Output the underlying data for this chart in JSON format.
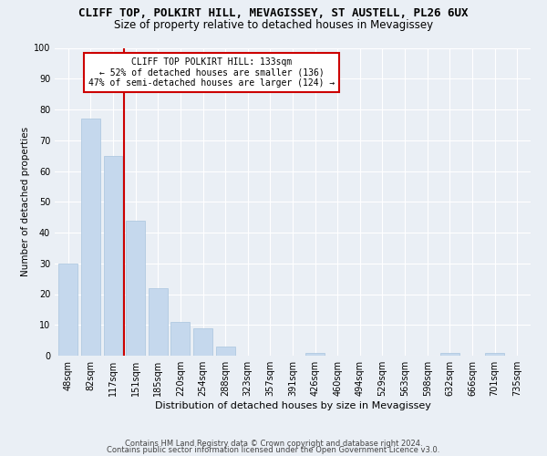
{
  "title": "CLIFF TOP, POLKIRT HILL, MEVAGISSEY, ST AUSTELL, PL26 6UX",
  "subtitle": "Size of property relative to detached houses in Mevagissey",
  "xlabel": "Distribution of detached houses by size in Mevagissey",
  "ylabel": "Number of detached properties",
  "categories": [
    "48sqm",
    "82sqm",
    "117sqm",
    "151sqm",
    "185sqm",
    "220sqm",
    "254sqm",
    "288sqm",
    "323sqm",
    "357sqm",
    "391sqm",
    "426sqm",
    "460sqm",
    "494sqm",
    "529sqm",
    "563sqm",
    "598sqm",
    "632sqm",
    "666sqm",
    "701sqm",
    "735sqm"
  ],
  "values": [
    30,
    77,
    65,
    44,
    22,
    11,
    9,
    3,
    0,
    0,
    0,
    1,
    0,
    0,
    0,
    0,
    0,
    1,
    0,
    1,
    0
  ],
  "bar_color": "#c5d8ed",
  "bar_edge_color": "#a8c4de",
  "vline_x": 2.5,
  "vline_color": "#cc0000",
  "annotation_line1": "CLIFF TOP POLKIRT HILL: 133sqm",
  "annotation_line2": "← 52% of detached houses are smaller (136)",
  "annotation_line3": "47% of semi-detached houses are larger (124) →",
  "annotation_box_color": "#cc0000",
  "annotation_box_fill": "#ffffff",
  "ylim": [
    0,
    100
  ],
  "yticks": [
    0,
    10,
    20,
    30,
    40,
    50,
    60,
    70,
    80,
    90,
    100
  ],
  "footer1": "Contains HM Land Registry data © Crown copyright and database right 2024.",
  "footer2": "Contains public sector information licensed under the Open Government Licence v3.0.",
  "background_color": "#eaeff5",
  "plot_bg_color": "#eaeff5",
  "title_fontsize": 9,
  "subtitle_fontsize": 8.5,
  "xlabel_fontsize": 8,
  "ylabel_fontsize": 7.5,
  "tick_fontsize": 7,
  "footer_fontsize": 6
}
